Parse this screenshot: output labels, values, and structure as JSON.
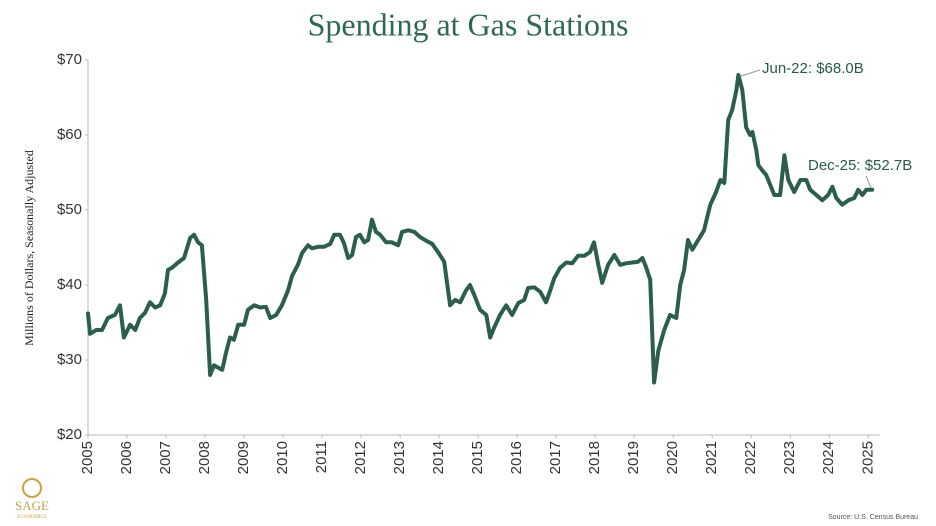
{
  "chart_data": {
    "type": "line",
    "title": "Spending at Gas Stations",
    "ylabel": "Millions of Dollars, Seasonally Adjusted",
    "source": "Source: U.S. Census Bureau",
    "logo": [
      "SAGE",
      "ECONOMICS"
    ],
    "annotations": [
      "Jun-22: $68.0B",
      "Dec-25: $52.7B"
    ],
    "xlim": [
      2005,
      2025.3
    ],
    "xticks": [
      2005,
      2006,
      2007,
      2008,
      2009,
      2010,
      2011,
      2012,
      2013,
      2014,
      2015,
      2016,
      2017,
      2018,
      2019,
      2020,
      2021,
      2022,
      2023,
      2024,
      2025
    ],
    "ylim": [
      20,
      70
    ],
    "yticks": [
      {
        "value": 20,
        "label": "$20"
      },
      {
        "value": 30,
        "label": "$30"
      },
      {
        "value": 40,
        "label": "$40"
      },
      {
        "value": 50,
        "label": "$50"
      },
      {
        "value": 60,
        "label": "$60"
      },
      {
        "value": 70,
        "label": "$70"
      }
    ],
    "grid": false,
    "x": [
      2005,
      2005.05,
      2005.21,
      2005.36,
      2005.51,
      2005.69,
      2005.82,
      2005.92,
      2006.08,
      2006.21,
      2006.33,
      2006.46,
      2006.59,
      2006.72,
      2006.85,
      2006.97,
      2007.05,
      2007.15,
      2007.31,
      2007.46,
      2007.62,
      2007.72,
      2007.82,
      2007.92,
      2008.03,
      2008.13,
      2008.23,
      2008.33,
      2008.44,
      2008.54,
      2008.64,
      2008.74,
      2008.85,
      2009.0,
      2009.1,
      2009.26,
      2009.41,
      2009.56,
      2009.67,
      2009.82,
      2009.97,
      2010.13,
      2010.23,
      2010.38,
      2010.49,
      2010.64,
      2010.74,
      2010.9,
      2011.05,
      2011.21,
      2011.31,
      2011.46,
      2011.56,
      2011.67,
      2011.77,
      2011.87,
      2011.97,
      2012.08,
      2012.18,
      2012.28,
      2012.38,
      2012.49,
      2012.64,
      2012.79,
      2012.95,
      2013.05,
      2013.21,
      2013.36,
      2013.51,
      2013.67,
      2013.82,
      2013.97,
      2014.13,
      2014.28,
      2014.41,
      2014.54,
      2014.69,
      2014.79,
      2014.9,
      2015.05,
      2015.21,
      2015.31,
      2015.41,
      2015.56,
      2015.72,
      2015.87,
      2016.03,
      2016.18,
      2016.28,
      2016.44,
      2016.59,
      2016.74,
      2016.85,
      2016.95,
      2017.1,
      2017.26,
      2017.41,
      2017.56,
      2017.72,
      2017.87,
      2017.97,
      2018.08,
      2018.18,
      2018.33,
      2018.49,
      2018.64,
      2018.79,
      2018.95,
      2019.1,
      2019.21,
      2019.31,
      2019.41,
      2019.51,
      2019.62,
      2019.77,
      2019.92,
      2020.08,
      2020.18,
      2020.28,
      2020.38,
      2020.49,
      2020.64,
      2020.79,
      2020.95,
      2021.1,
      2021.21,
      2021.31,
      2021.41,
      2021.51,
      2021.62,
      2021.67,
      2021.77,
      2021.87,
      2021.97,
      2022.03,
      2022.13,
      2022.18,
      2022.28,
      2022.38,
      2022.49,
      2022.59,
      2022.74,
      2022.85,
      2022.95,
      2023.1,
      2023.26,
      2023.41,
      2023.51,
      2023.67,
      2023.82,
      2023.97,
      2024.08,
      2024.18,
      2024.33,
      2024.49,
      2024.64,
      2024.74,
      2024.85,
      2024.95,
      2025.1
    ],
    "series": [
      {
        "name": "Spending at Gas Stations",
        "color": "#2b5e4b",
        "values": [
          36.2,
          33.5,
          34,
          34,
          35.6,
          36,
          37.3,
          33,
          34.7,
          34,
          35.6,
          36.3,
          37.7,
          37,
          37.3,
          38.9,
          42,
          42.3,
          43,
          43.6,
          46.3,
          46.7,
          45.7,
          45.3,
          38,
          28,
          29.3,
          29,
          28.7,
          31,
          33,
          32.7,
          34.7,
          34.7,
          36.7,
          37.3,
          37,
          37.1,
          35.6,
          36,
          37.3,
          39.3,
          41.2,
          42.7,
          44.3,
          45.3,
          44.9,
          45.1,
          45.1,
          45.5,
          46.7,
          46.7,
          45.6,
          43.6,
          44,
          46.4,
          46.7,
          45.7,
          46,
          48.7,
          47.1,
          46.7,
          45.7,
          45.7,
          45.3,
          47.1,
          47.3,
          47.1,
          46.4,
          45.9,
          45.5,
          44.4,
          43.1,
          37.3,
          38,
          37.7,
          39.3,
          40,
          38.7,
          36.7,
          36,
          33,
          34.3,
          36,
          37.3,
          36,
          37.6,
          38,
          39.6,
          39.7,
          39.1,
          37.7,
          39.3,
          40.9,
          42.3,
          43,
          42.9,
          43.9,
          43.9,
          44.4,
          45.7,
          42.7,
          40.3,
          42.7,
          44,
          42.7,
          42.9,
          43,
          43.1,
          43.6,
          42.3,
          40.7,
          27,
          31.3,
          34,
          36,
          35.6,
          40,
          42,
          46,
          44.7,
          46,
          47.3,
          50.7,
          52.4,
          54,
          53.6,
          62,
          63.3,
          66,
          68,
          66,
          61,
          60,
          60.4,
          58,
          56,
          55.3,
          54.7,
          53.3,
          52,
          52,
          57.3,
          54,
          52.4,
          54,
          54,
          52.7,
          52,
          51.3,
          52,
          53.1,
          51.6,
          50.7,
          51.3,
          51.6,
          52.7,
          52,
          52.7,
          52.7
        ]
      }
    ]
  }
}
